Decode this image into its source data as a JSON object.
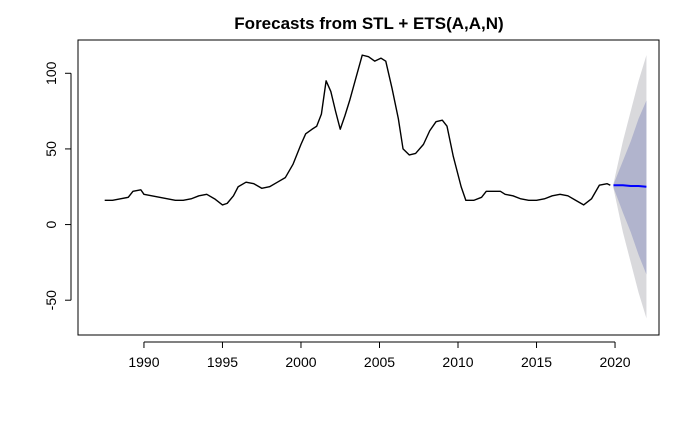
{
  "chart_data": {
    "type": "line",
    "title": "Forecasts from STL +  ETS(A,A,N)",
    "xlabel": "",
    "ylabel": "",
    "xlim": [
      1985.8,
      2022.8
    ],
    "ylim": [
      -73,
      122
    ],
    "x_ticks": [
      1990,
      1995,
      2000,
      2005,
      2010,
      2015,
      2020
    ],
    "y_ticks": [
      -50,
      0,
      50,
      100
    ],
    "grid": false,
    "legend": "none",
    "colors": {
      "history": "#000000",
      "forecast": "#0000ff",
      "interval_80": "#b1b4cd",
      "interval_95": "#d9d9dc"
    },
    "series": [
      {
        "role": "history",
        "points": [
          [
            1987.5,
            16
          ],
          [
            1988.0,
            16
          ],
          [
            1988.5,
            17
          ],
          [
            1989.0,
            18
          ],
          [
            1989.3,
            22
          ],
          [
            1989.8,
            23
          ],
          [
            1990.0,
            20
          ],
          [
            1990.5,
            19
          ],
          [
            1991.0,
            18
          ],
          [
            1991.5,
            17
          ],
          [
            1992.0,
            16
          ],
          [
            1992.5,
            16
          ],
          [
            1993.0,
            17
          ],
          [
            1993.5,
            19
          ],
          [
            1994.0,
            20
          ],
          [
            1994.5,
            17
          ],
          [
            1995.0,
            13
          ],
          [
            1995.3,
            14
          ],
          [
            1995.7,
            19
          ],
          [
            1996.0,
            25
          ],
          [
            1996.5,
            28
          ],
          [
            1997.0,
            27
          ],
          [
            1997.5,
            24
          ],
          [
            1998.0,
            25
          ],
          [
            1998.5,
            28
          ],
          [
            1999.0,
            31
          ],
          [
            1999.5,
            40
          ],
          [
            2000.0,
            53
          ],
          [
            2000.3,
            60
          ],
          [
            2000.7,
            63
          ],
          [
            2001.0,
            65
          ],
          [
            2001.3,
            73
          ],
          [
            2001.6,
            95
          ],
          [
            2001.9,
            88
          ],
          [
            2002.2,
            75
          ],
          [
            2002.5,
            63
          ],
          [
            2002.8,
            72
          ],
          [
            2003.1,
            82
          ],
          [
            2003.5,
            97
          ],
          [
            2003.9,
            112
          ],
          [
            2004.3,
            111
          ],
          [
            2004.7,
            108
          ],
          [
            2005.1,
            110
          ],
          [
            2005.4,
            108
          ],
          [
            2005.8,
            90
          ],
          [
            2006.2,
            70
          ],
          [
            2006.5,
            50
          ],
          [
            2006.9,
            46
          ],
          [
            2007.3,
            47
          ],
          [
            2007.8,
            53
          ],
          [
            2008.2,
            62
          ],
          [
            2008.6,
            68
          ],
          [
            2009.0,
            69
          ],
          [
            2009.3,
            65
          ],
          [
            2009.7,
            45
          ],
          [
            2010.2,
            25
          ],
          [
            2010.5,
            16
          ],
          [
            2011.0,
            16
          ],
          [
            2011.5,
            18
          ],
          [
            2011.8,
            22
          ],
          [
            2012.3,
            22
          ],
          [
            2012.7,
            22
          ],
          [
            2013.0,
            20
          ],
          [
            2013.5,
            19
          ],
          [
            2014.0,
            17
          ],
          [
            2014.5,
            16
          ],
          [
            2015.0,
            16
          ],
          [
            2015.5,
            17
          ],
          [
            2016.0,
            19
          ],
          [
            2016.5,
            20
          ],
          [
            2017.0,
            19
          ],
          [
            2017.5,
            16
          ],
          [
            2018.0,
            13
          ],
          [
            2018.5,
            17
          ],
          [
            2019.0,
            26
          ],
          [
            2019.5,
            27
          ],
          [
            2019.7,
            26
          ]
        ]
      },
      {
        "role": "forecast",
        "points": [
          [
            2019.9,
            26
          ],
          [
            2020.5,
            26
          ],
          [
            2021.0,
            25.5
          ],
          [
            2021.5,
            25.5
          ],
          [
            2022.0,
            25
          ]
        ]
      }
    ],
    "intervals": [
      {
        "level": 95,
        "x": [
          2019.9,
          2020.5,
          2021.0,
          2021.5,
          2022.0
        ],
        "upper": [
          27,
          55,
          75,
          95,
          112
        ],
        "lower": [
          24,
          -5,
          -25,
          -45,
          -62
        ]
      },
      {
        "level": 80,
        "x": [
          2019.9,
          2020.5,
          2021.0,
          2021.5,
          2022.0
        ],
        "upper": [
          26.5,
          42,
          55,
          70,
          82
        ],
        "lower": [
          24.5,
          8,
          -5,
          -20,
          -33
        ]
      }
    ]
  }
}
